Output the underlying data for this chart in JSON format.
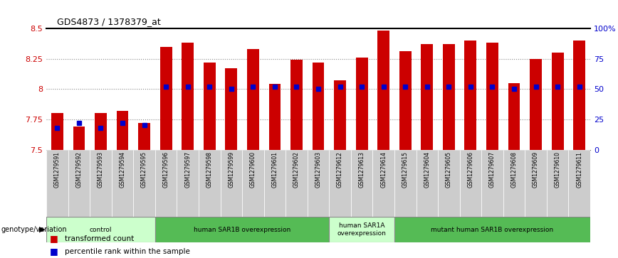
{
  "title": "GDS4873 / 1378379_at",
  "samples": [
    "GSM1279591",
    "GSM1279592",
    "GSM1279593",
    "GSM1279594",
    "GSM1279595",
    "GSM1279596",
    "GSM1279597",
    "GSM1279598",
    "GSM1279599",
    "GSM1279600",
    "GSM1279601",
    "GSM1279602",
    "GSM1279603",
    "GSM1279612",
    "GSM1279613",
    "GSM1279614",
    "GSM1279615",
    "GSM1279604",
    "GSM1279605",
    "GSM1279606",
    "GSM1279607",
    "GSM1279608",
    "GSM1279609",
    "GSM1279610",
    "GSM1279611"
  ],
  "transformed_counts": [
    7.8,
    7.69,
    7.8,
    7.82,
    7.72,
    8.35,
    8.38,
    8.22,
    8.17,
    8.33,
    8.04,
    8.24,
    8.22,
    8.07,
    8.26,
    8.48,
    8.31,
    8.37,
    8.37,
    8.4,
    8.38,
    8.05,
    8.25,
    8.3,
    8.4
  ],
  "percentile_ranks": [
    18,
    22,
    18,
    22,
    20,
    52,
    52,
    52,
    50,
    52,
    52,
    52,
    50,
    52,
    52,
    52,
    52,
    52,
    52,
    52,
    52,
    50,
    52,
    52,
    52
  ],
  "groups": [
    {
      "label": "control",
      "start": 0,
      "end": 5,
      "color": "#ccffcc"
    },
    {
      "label": "human SAR1B overexpression",
      "start": 5,
      "end": 13,
      "color": "#55bb55"
    },
    {
      "label": "human SAR1A\noverexpression",
      "start": 13,
      "end": 16,
      "color": "#ccffcc"
    },
    {
      "label": "mutant human SAR1B overexpression",
      "start": 16,
      "end": 25,
      "color": "#55bb55"
    }
  ],
  "ylim": [
    7.5,
    8.5
  ],
  "yticks": [
    7.5,
    7.75,
    8.0,
    8.25,
    8.5
  ],
  "ytick_labels": [
    "7.5",
    "7.75",
    "8",
    "8.25",
    "8.5"
  ],
  "bar_color": "#cc0000",
  "dot_color": "#0000cc",
  "bg_color": "#ffffff",
  "grid_color": "#888888",
  "label_bg": "#cccccc"
}
